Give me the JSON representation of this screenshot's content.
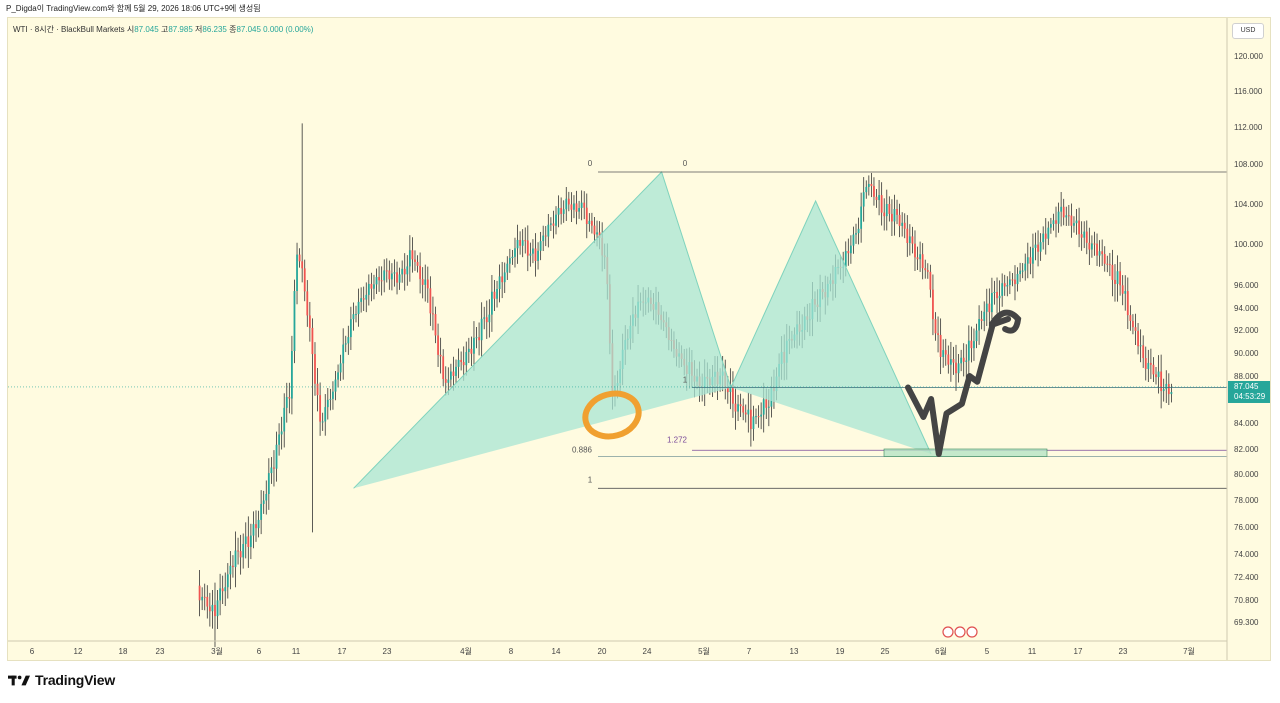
{
  "caption": "P_Digda이 TradingView.com와 함께 5월 29, 2026 18:06 UTC+9에 생성됨",
  "legend": {
    "symbol": "WTI · 8시간 · BlackBull Markets",
    "o_label": "시",
    "o": "87.045",
    "h_label": "고",
    "h": "87.985",
    "l_label": "저",
    "l": "86.235",
    "c_label": "종",
    "c": "87.045",
    "chg": "0.000 (0.00%)"
  },
  "currency": "USD",
  "price_box": {
    "price": "87.045",
    "countdown": "04:53:29"
  },
  "brand": "TradingView",
  "colors": {
    "up": "#26a69a",
    "down": "#ef5350",
    "pattern": "#a8e6d4",
    "marker": "#f0a030",
    "drawing": "#444444",
    "background": "#fffbe0"
  },
  "chart_data": {
    "type": "candlestick",
    "y_axis_ticks": [
      "120.000",
      "116.000",
      "112.000",
      "108.000",
      "104.000",
      "100.000",
      "96.000",
      "94.000",
      "92.000",
      "90.000",
      "88.000",
      "86.000",
      "84.000",
      "82.000",
      "80.000",
      "78.000",
      "76.000",
      "74.000",
      "72.400",
      "70.800",
      "69.300"
    ],
    "x_axis_ticks": [
      "6",
      "12",
      "18",
      "23",
      "3월",
      "6",
      "11",
      "17",
      "23",
      "4월",
      "8",
      "14",
      "20",
      "24",
      "5월",
      "7",
      "13",
      "19",
      "25",
      "6월",
      "5",
      "11",
      "17",
      "23",
      "7월"
    ],
    "fib_labels": [
      "0",
      "0",
      "1",
      "0.886",
      "1",
      "1.272"
    ],
    "harmonic_pattern_points": [
      {
        "date": "3/19",
        "price": 78.9
      },
      {
        "date": "4/28",
        "price": 107.2
      },
      {
        "date": "5/7",
        "price": 87.0
      },
      {
        "date": "5/18",
        "price": 104.3
      },
      {
        "date": "6/2",
        "price": 81.6
      }
    ],
    "projection_path": [
      {
        "date": "5/30",
        "price": 87.0
      },
      {
        "date": "6/1",
        "price": 84.5
      },
      {
        "date": "6/2",
        "price": 86.0
      },
      {
        "date": "6/3",
        "price": 81.6
      },
      {
        "date": "6/4",
        "price": 84.8
      },
      {
        "date": "6/6",
        "price": 85.6
      },
      {
        "date": "6/7",
        "price": 88.0
      },
      {
        "date": "6/8",
        "price": 87.5
      },
      {
        "date": "6/10",
        "price": 92.5
      },
      {
        "date": "6/12",
        "price": 93.0
      }
    ],
    "target_zone": {
      "from_price": 81.4,
      "to_price": 82.0
    },
    "current_price": 87.045
  }
}
